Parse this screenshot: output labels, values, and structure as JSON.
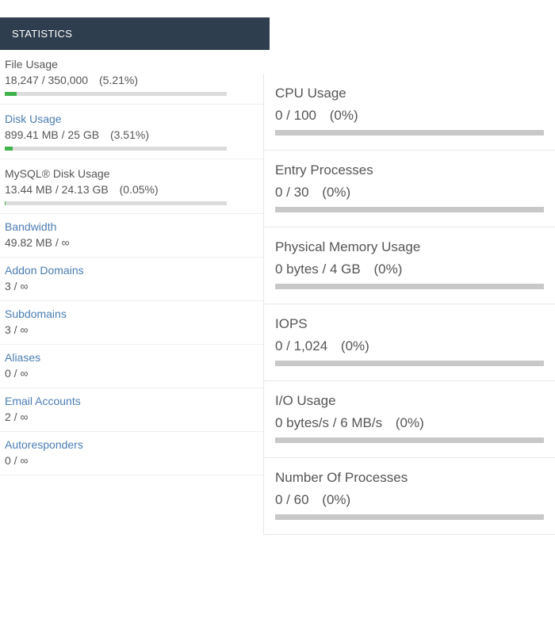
{
  "panel": {
    "title": "STATISTICS",
    "header_bg": "#2f3e4e",
    "header_fg": "#ffffff",
    "link_color": "#4b7db3",
    "text_color": "#555555",
    "progress_bg": "#dcdcdc",
    "progress_fill": "#3fb24b"
  },
  "stats": {
    "file_usage": {
      "label": "File Usage",
      "value": "18,247 / 350,000",
      "percent": "(5.21%)",
      "fill_pct": 5.21,
      "has_bar": true,
      "label_plain": true
    },
    "disk_usage": {
      "label": "Disk Usage",
      "value": "899.41 MB / 25 GB",
      "percent": "(3.51%)",
      "fill_pct": 3.51,
      "has_bar": true,
      "label_plain": false
    },
    "mysql_disk": {
      "label": "MySQL® Disk Usage",
      "value": "13.44 MB / 24.13 GB",
      "percent": "(0.05%)",
      "fill_pct": 0.05,
      "has_bar": true,
      "label_plain": true
    },
    "bandwidth": {
      "label": "Bandwidth",
      "value": "49.82 MB / ∞",
      "has_bar": false
    },
    "addon_domains": {
      "label": "Addon Domains",
      "value": "3 / ∞",
      "has_bar": false
    },
    "subdomains": {
      "label": "Subdomains",
      "value": "3 / ∞",
      "has_bar": false
    },
    "aliases": {
      "label": "Aliases",
      "value": "0 / ∞",
      "has_bar": false
    },
    "email_accounts": {
      "label": "Email Accounts",
      "value": "2 / ∞",
      "has_bar": false
    },
    "autoresponders": {
      "label": "Autoresponders",
      "value": "0 / ∞",
      "has_bar": false
    }
  },
  "metrics": {
    "cpu": {
      "title": "CPU Usage",
      "value": "0 / 100",
      "percent": "(0%)",
      "fill_pct": 0
    },
    "entry_processes": {
      "title": "Entry Processes",
      "value": "0 / 30",
      "percent": "(0%)",
      "fill_pct": 0
    },
    "physical_memory": {
      "title": "Physical Memory Usage",
      "value": "0 bytes / 4 GB",
      "percent": "(0%)",
      "fill_pct": 0
    },
    "iops": {
      "title": "IOPS",
      "value": "0 / 1,024",
      "percent": "(0%)",
      "fill_pct": 0
    },
    "io_usage": {
      "title": "I/O Usage",
      "value": "0 bytes/s / 6 MB/s",
      "percent": "(0%)",
      "fill_pct": 0
    },
    "num_processes": {
      "title": "Number Of Processes",
      "value": "0 / 60",
      "percent": "(0%)",
      "fill_pct": 0
    }
  },
  "metric_bar_bg": "#c8c8c8",
  "card_border": "#e8e8e8"
}
